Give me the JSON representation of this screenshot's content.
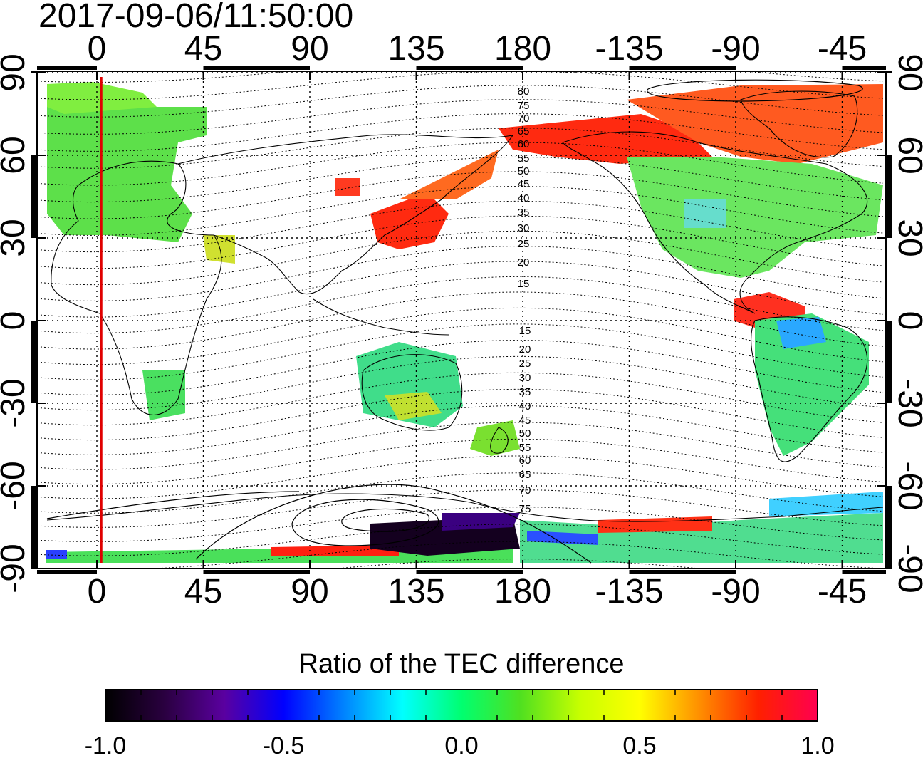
{
  "timestamp": "2017-09-06/11:50:00",
  "colorbar": {
    "title": "Ratio of the TEC difference",
    "ticks": [
      "-1.0",
      "-0.5",
      "0.0",
      "0.5",
      "1.0"
    ],
    "stops": [
      "#000000",
      "#2a0040",
      "#5a00a0",
      "#0000ff",
      "#0080ff",
      "#00ffff",
      "#00ff70",
      "#50e020",
      "#c8ff00",
      "#ffff00",
      "#ff9000",
      "#ff2000",
      "#ff0050"
    ]
  },
  "map": {
    "lon_ticks_bottom": [
      "0",
      "45",
      "90",
      "135",
      "180",
      "-135",
      "-90",
      "-45"
    ],
    "lon_ticks_top": [
      "0",
      "45",
      "90",
      "135",
      "180",
      "-135",
      "-90",
      "-45"
    ],
    "lat_ticks_left": [
      "90",
      "60",
      "30",
      "0",
      "-30",
      "-60",
      "-90"
    ],
    "lat_ticks_right": [
      "90",
      "60",
      "30",
      "0",
      "-30",
      "-60",
      "-90"
    ],
    "magnetic_lat_labels_north": [
      "80",
      "75",
      "70",
      "65",
      "60",
      "55",
      "50",
      "45",
      "40",
      "35",
      "30",
      "25",
      "20",
      "15"
    ],
    "magnetic_lat_labels_south": [
      "15",
      "20",
      "25",
      "30",
      "35",
      "40",
      "45",
      "50",
      "55",
      "60",
      "65",
      "70",
      "75"
    ],
    "marker_line_color": "#e00000"
  }
}
